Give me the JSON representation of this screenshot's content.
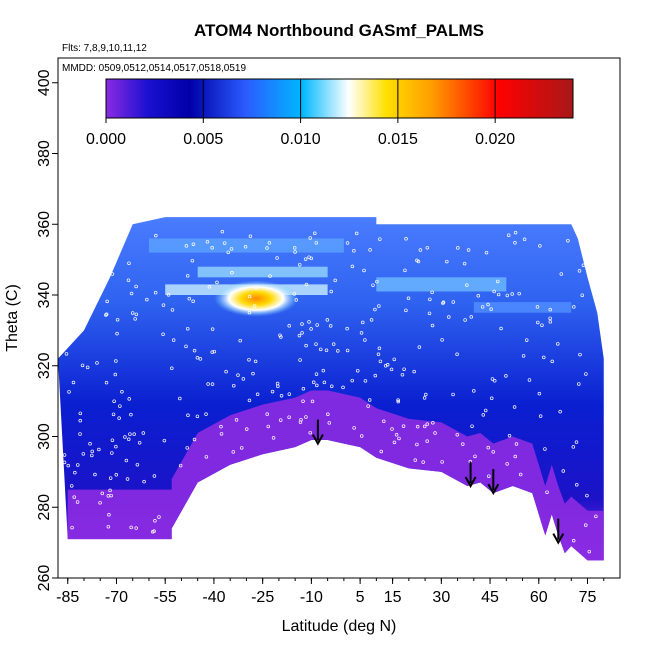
{
  "chart_data": {
    "type": "heatmap",
    "title": "ATOM4 Northbound GASmf_PALMS",
    "flights_label": "Flts: 7,8,9,10,11,12",
    "dates_label": "MMDD: 0509,0512,0514,0517,0518,0519",
    "xlabel": "Latitude (deg N)",
    "ylabel": "Theta (C)",
    "xlim": [
      -88,
      85
    ],
    "ylim": [
      260,
      407
    ],
    "x_ticks": [
      "-85",
      "-70",
      "-55",
      "-40",
      "-25",
      "-10",
      "5",
      "15",
      "30",
      "45",
      "60",
      "75"
    ],
    "y_ticks": [
      "260",
      "280",
      "300",
      "320",
      "340",
      "360",
      "380",
      "400"
    ],
    "colorbar": {
      "min": 0.0,
      "max": 0.024,
      "tick_labels": [
        "0.000",
        "0.005",
        "0.010",
        "0.015",
        "0.020"
      ],
      "tick_values": [
        0.0,
        0.005,
        0.01,
        0.015,
        0.02
      ],
      "colors": [
        "#8a2be2",
        "#1010d0",
        "#0000aa",
        "#3060ff",
        "#00b4ff",
        "#ffffff",
        "#ffd000",
        "#ff8000",
        "#ff0000",
        "#b01010"
      ]
    },
    "surface_profile": [
      [
        -85,
        271
      ],
      [
        -53,
        271
      ],
      [
        -53,
        274
      ],
      [
        -45,
        287
      ],
      [
        -35,
        292
      ],
      [
        -25,
        295
      ],
      [
        -15,
        297
      ],
      [
        -10,
        299
      ],
      [
        -5,
        299
      ],
      [
        0,
        298
      ],
      [
        5,
        297
      ],
      [
        10,
        294
      ],
      [
        20,
        291
      ],
      [
        30,
        290
      ],
      [
        38,
        286
      ],
      [
        42,
        287
      ],
      [
        46,
        284
      ],
      [
        52,
        286
      ],
      [
        58,
        284
      ],
      [
        61,
        275
      ],
      [
        62,
        272
      ],
      [
        64,
        278
      ],
      [
        66,
        272
      ],
      [
        68,
        267
      ],
      [
        70,
        269
      ],
      [
        75,
        265
      ],
      [
        80,
        265
      ]
    ],
    "tropopause_profile": [
      [
        -88,
        322
      ],
      [
        -80,
        330
      ],
      [
        -72,
        345
      ],
      [
        -65,
        360
      ],
      [
        -55,
        362
      ],
      [
        10,
        362
      ],
      [
        10,
        360
      ],
      [
        60,
        360
      ],
      [
        65,
        360
      ],
      [
        70,
        360
      ],
      [
        72,
        356
      ],
      [
        75,
        345
      ],
      [
        78,
        335
      ],
      [
        80,
        322
      ],
      [
        80,
        265
      ]
    ],
    "high_feature": {
      "lat_center": -27,
      "theta_center": 339,
      "value": 0.017
    },
    "arrows": [
      {
        "lat": -8,
        "theta": 298
      },
      {
        "lat": 39,
        "theta": 286
      },
      {
        "lat": 46,
        "theta": 284
      },
      {
        "lat": 66,
        "theta": 270
      }
    ]
  }
}
